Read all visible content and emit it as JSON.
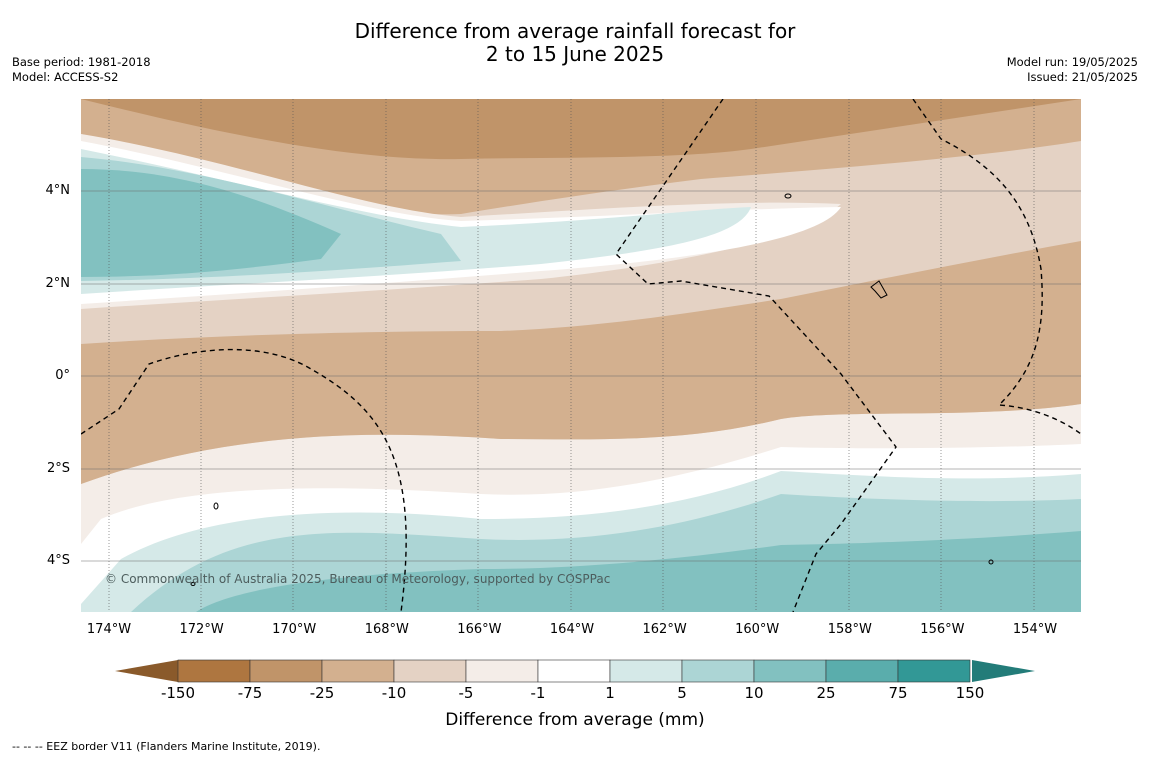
{
  "title": {
    "line1": "Difference from average rainfall forecast for",
    "line2": "2 to 15 June 2025"
  },
  "meta_left": {
    "base_period": "Base period: 1981-2018",
    "model": "Model: ACCESS-S2"
  },
  "meta_right": {
    "model_run": "Model run: 19/05/2025",
    "issued": "Issued: 21/05/2025"
  },
  "map": {
    "lat_ticks": [
      "4°N",
      "2°N",
      "0°",
      "2°S",
      "4°S"
    ],
    "lon_ticks": [
      "174°W",
      "172°W",
      "170°W",
      "168°W",
      "166°W",
      "164°W",
      "162°W",
      "160°W",
      "158°W",
      "156°W",
      "154°W"
    ],
    "copyright": "© Commonwealth of Australia 2025, Bureau of Meteorology, supported by COSPPac",
    "features": [
      "eez-border-dashed",
      "island-outlines"
    ]
  },
  "legend": {
    "tick_labels": [
      "-150",
      "-75",
      "-25",
      "-10",
      "-5",
      "-1",
      "1",
      "5",
      "10",
      "25",
      "75",
      "150"
    ],
    "colors": [
      "#8a5a2b",
      "#ae7640",
      "#c09469",
      "#d3b08f",
      "#e4d2c4",
      "#f4ede8",
      "#ffffff",
      "#d5e9e8",
      "#acd5d5",
      "#82c1c0",
      "#5aadac",
      "#329896",
      "#237c79"
    ],
    "label": "Difference from average (mm)"
  },
  "footnote": "--  --  -- EEZ border V11 (Flanders Marine Institute, 2019)."
}
